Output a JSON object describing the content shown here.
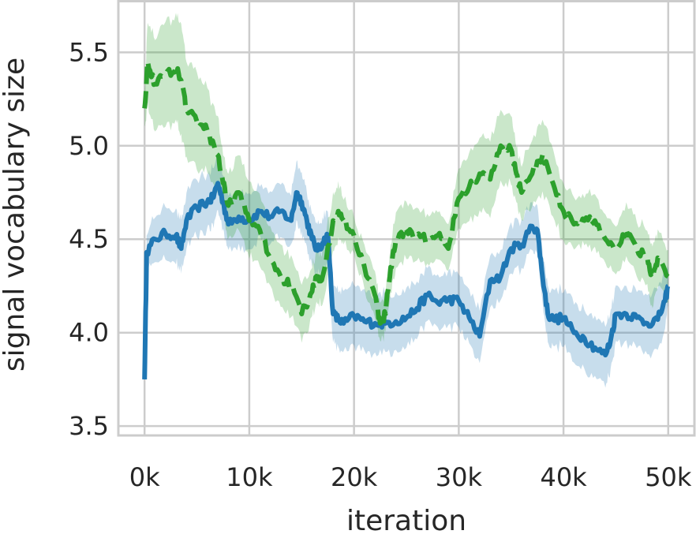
{
  "chart_data": {
    "type": "line",
    "xlabel": "iteration",
    "ylabel": "signal vocabulary size",
    "xlim": [
      -2500,
      52500
    ],
    "ylim": [
      3.45,
      5.78
    ],
    "x_ticks": [
      0,
      10000,
      20000,
      30000,
      40000,
      50000
    ],
    "x_tick_labels": [
      "0k",
      "10k",
      "20k",
      "30k",
      "40k",
      "50k"
    ],
    "y_ticks": [
      3.5,
      4.0,
      4.5,
      5.0,
      5.5
    ],
    "y_tick_labels": [
      "3.5",
      "4.0",
      "4.5",
      "5.0",
      "5.5"
    ],
    "grid": true,
    "legend": "none",
    "series": [
      {
        "color": "#1f77b4",
        "dash": "solid",
        "band_alpha": 0.25,
        "x": [
          0,
          200,
          1000,
          2000,
          3000,
          3500,
          4000,
          5000,
          6000,
          6500,
          7000,
          7500,
          8000,
          9000,
          10000,
          11000,
          12000,
          13000,
          14000,
          14500,
          15000,
          15500,
          16000,
          16500,
          17000,
          17500,
          18000,
          18500,
          19000,
          20000,
          21000,
          22000,
          23000,
          24000,
          25000,
          26000,
          27000,
          28000,
          29000,
          30000,
          31000,
          32000,
          33000,
          34000,
          35000,
          36000,
          37000,
          37500,
          38000,
          38500,
          39000,
          40000,
          41000,
          42000,
          43000,
          44000,
          44500,
          45000,
          46000,
          47000,
          48000,
          49000,
          49700,
          50000
        ],
        "y": [
          3.75,
          4.43,
          4.5,
          4.53,
          4.52,
          4.45,
          4.6,
          4.67,
          4.7,
          4.72,
          4.8,
          4.7,
          4.58,
          4.62,
          4.6,
          4.65,
          4.62,
          4.65,
          4.6,
          4.75,
          4.7,
          4.6,
          4.5,
          4.44,
          4.48,
          4.52,
          4.1,
          4.07,
          4.05,
          4.09,
          4.06,
          4.05,
          4.05,
          4.06,
          4.08,
          4.13,
          4.2,
          4.16,
          4.18,
          4.17,
          4.08,
          3.98,
          4.28,
          4.3,
          4.45,
          4.47,
          4.57,
          4.55,
          4.3,
          4.1,
          4.07,
          4.08,
          4.0,
          3.97,
          3.92,
          3.88,
          3.96,
          4.1,
          4.1,
          4.08,
          4.05,
          4.07,
          4.17,
          4.25
        ],
        "spread": [
          0.0,
          0.1,
          0.12,
          0.14,
          0.14,
          0.14,
          0.15,
          0.15,
          0.15,
          0.15,
          0.15,
          0.15,
          0.15,
          0.15,
          0.15,
          0.14,
          0.14,
          0.14,
          0.14,
          0.16,
          0.16,
          0.15,
          0.14,
          0.14,
          0.14,
          0.14,
          0.15,
          0.16,
          0.16,
          0.16,
          0.16,
          0.16,
          0.16,
          0.15,
          0.15,
          0.15,
          0.14,
          0.14,
          0.14,
          0.14,
          0.14,
          0.14,
          0.14,
          0.13,
          0.13,
          0.13,
          0.12,
          0.12,
          0.14,
          0.15,
          0.15,
          0.15,
          0.16,
          0.16,
          0.16,
          0.16,
          0.16,
          0.15,
          0.15,
          0.15,
          0.16,
          0.17,
          0.15,
          0.1
        ]
      },
      {
        "color": "#2ca02c",
        "dash": "dashed",
        "band_alpha": 0.25,
        "x": [
          0,
          300,
          1000,
          2000,
          3000,
          3500,
          4000,
          5000,
          6000,
          7000,
          7500,
          8000,
          9000,
          10000,
          11000,
          12000,
          13000,
          14000,
          15000,
          16000,
          16500,
          17000,
          18000,
          18500,
          19000,
          20000,
          21000,
          22000,
          22500,
          23000,
          23500,
          24000,
          25000,
          26000,
          27000,
          28000,
          29000,
          30000,
          31000,
          32000,
          33000,
          34000,
          35000,
          35500,
          36000,
          37000,
          38000,
          39000,
          40000,
          41000,
          42000,
          43000,
          44000,
          45000,
          46000,
          47000,
          48000,
          48500,
          49000,
          50000
        ],
        "y": [
          5.2,
          5.45,
          5.33,
          5.38,
          5.42,
          5.35,
          5.2,
          5.13,
          5.08,
          4.95,
          4.8,
          4.68,
          4.75,
          4.6,
          4.55,
          4.4,
          4.3,
          4.25,
          4.1,
          4.22,
          4.3,
          4.3,
          4.6,
          4.65,
          4.6,
          4.52,
          4.35,
          4.2,
          4.05,
          4.1,
          4.35,
          4.5,
          4.55,
          4.52,
          4.5,
          4.52,
          4.45,
          4.72,
          4.78,
          4.85,
          4.82,
          5.0,
          4.98,
          4.85,
          4.75,
          4.85,
          4.95,
          4.8,
          4.65,
          4.58,
          4.6,
          4.6,
          4.5,
          4.45,
          4.55,
          4.45,
          4.4,
          4.3,
          4.4,
          4.3
        ],
        "spread": [
          0.1,
          0.22,
          0.25,
          0.28,
          0.28,
          0.3,
          0.26,
          0.25,
          0.22,
          0.2,
          0.15,
          0.18,
          0.2,
          0.2,
          0.18,
          0.16,
          0.16,
          0.16,
          0.15,
          0.14,
          0.14,
          0.14,
          0.15,
          0.15,
          0.12,
          0.1,
          0.12,
          0.12,
          0.1,
          0.1,
          0.12,
          0.15,
          0.15,
          0.14,
          0.13,
          0.13,
          0.12,
          0.16,
          0.18,
          0.2,
          0.2,
          0.2,
          0.18,
          0.15,
          0.15,
          0.18,
          0.2,
          0.18,
          0.15,
          0.13,
          0.13,
          0.14,
          0.13,
          0.13,
          0.14,
          0.15,
          0.15,
          0.16,
          0.15,
          0.14
        ]
      }
    ]
  }
}
